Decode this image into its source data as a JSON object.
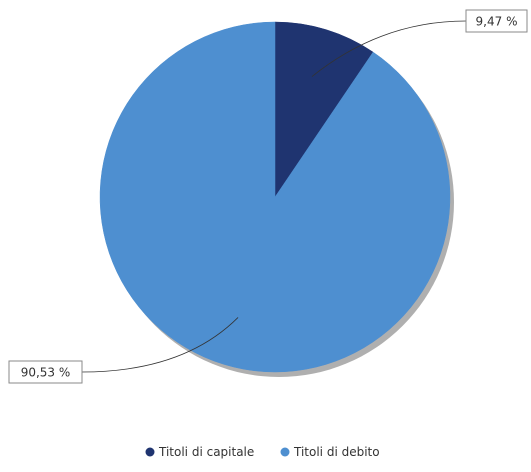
{
  "chart_data": {
    "type": "pie",
    "slices": [
      {
        "label": "Titoli di capitale",
        "value": 9.47,
        "display": "9,47 %",
        "color": "#1f3470"
      },
      {
        "label": "Titoli di debito",
        "value": 90.53,
        "display": "90,53 %",
        "color": "#4e8fd0"
      }
    ],
    "legend_position": "bottom-center",
    "start_angle": "top",
    "direction": "clockwise"
  }
}
